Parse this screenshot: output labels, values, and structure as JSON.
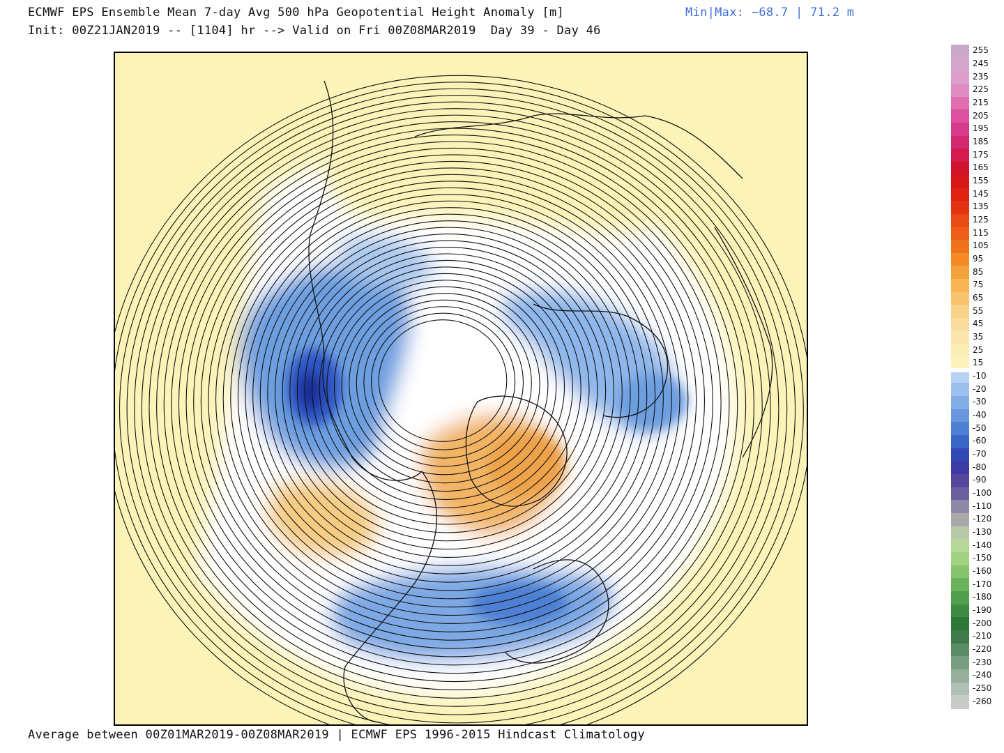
{
  "header": {
    "title": "ECMWF EPS Ensemble Mean 7-day Avg 500 hPa Geopotential Height Anomaly [m]",
    "init": "Init: 00Z21JAN2019 -- [1104] hr --> Valid on Fri 00Z08MAR2019  Day 39 - Day 46",
    "minmax": "Min|Max: −68.7 | 71.2 m"
  },
  "footer": "Average between 00Z01MAR2019-00Z08MAR2019 | ECMWF EPS 1996-2015 Hindcast Climatology",
  "colors": {
    "positive_light": "#fbf3b8",
    "positive_mid": "#f6c878",
    "positive_strong": "#eea24a",
    "negative_light": "#a9c8ee",
    "negative_mid": "#6d9fe0",
    "negative_strong": "#2e57c4",
    "negative_deep": "#1f2f9a",
    "neutral": "#ffffff"
  },
  "colorbar": {
    "levels": [
      {
        "label": "255",
        "color": "#c9a9c8"
      },
      {
        "label": "245",
        "color": "#d5a5cf"
      },
      {
        "label": "235",
        "color": "#dc9ecb"
      },
      {
        "label": "225",
        "color": "#e08cc2"
      },
      {
        "label": "215",
        "color": "#e06db0"
      },
      {
        "label": "205",
        "color": "#dd4f9f"
      },
      {
        "label": "195",
        "color": "#d83a8a"
      },
      {
        "label": "185",
        "color": "#d4286f"
      },
      {
        "label": "175",
        "color": "#d31b4f"
      },
      {
        "label": "165",
        "color": "#d4142d"
      },
      {
        "label": "155",
        "color": "#d81818"
      },
      {
        "label": "145",
        "color": "#de2214"
      },
      {
        "label": "135",
        "color": "#e43314"
      },
      {
        "label": "125",
        "color": "#ea4a16"
      },
      {
        "label": "115",
        "color": "#ee5e18"
      },
      {
        "label": "105",
        "color": "#f1721c"
      },
      {
        "label": "95",
        "color": "#f48a24"
      },
      {
        "label": "85",
        "color": "#f6a23a"
      },
      {
        "label": "75",
        "color": "#f7b556"
      },
      {
        "label": "65",
        "color": "#f8c470"
      },
      {
        "label": "55",
        "color": "#f9d28a"
      },
      {
        "label": "45",
        "color": "#fadd9e"
      },
      {
        "label": "35",
        "color": "#fbe6ad"
      },
      {
        "label": "25",
        "color": "#fcedb5"
      },
      {
        "label": "15",
        "color": "#fcf2bc"
      },
      {
        "label": "-10",
        "color": "#b8d2f2"
      },
      {
        "label": "-20",
        "color": "#9ec0ec"
      },
      {
        "label": "-30",
        "color": "#84ade6"
      },
      {
        "label": "-40",
        "color": "#6998dd"
      },
      {
        "label": "-50",
        "color": "#4e80d4"
      },
      {
        "label": "-60",
        "color": "#3a66c8"
      },
      {
        "label": "-70",
        "color": "#3148b6"
      },
      {
        "label": "-80",
        "color": "#3c3aa3"
      },
      {
        "label": "-90",
        "color": "#55489c"
      },
      {
        "label": "-100",
        "color": "#6b5fa0"
      },
      {
        "label": "-110",
        "color": "#8d8aa8"
      },
      {
        "label": "-120",
        "color": "#a9a9ab"
      },
      {
        "label": "-130",
        "color": "#b8c8a8"
      },
      {
        "label": "-140",
        "color": "#b7d89a"
      },
      {
        "label": "-150",
        "color": "#a2d283"
      },
      {
        "label": "-160",
        "color": "#86c46d"
      },
      {
        "label": "-170",
        "color": "#6bb25c"
      },
      {
        "label": "-180",
        "color": "#529e4c"
      },
      {
        "label": "-190",
        "color": "#3e8b41"
      },
      {
        "label": "-200",
        "color": "#2d7838"
      },
      {
        "label": "-210",
        "color": "#3f7a4c"
      },
      {
        "label": "-220",
        "color": "#5c8c67"
      },
      {
        "label": "-230",
        "color": "#789d80"
      },
      {
        "label": "-240",
        "color": "#96ae9a"
      },
      {
        "label": "-250",
        "color": "#b2bfb4"
      },
      {
        "label": "-260",
        "color": "#c8cbc8"
      }
    ]
  }
}
